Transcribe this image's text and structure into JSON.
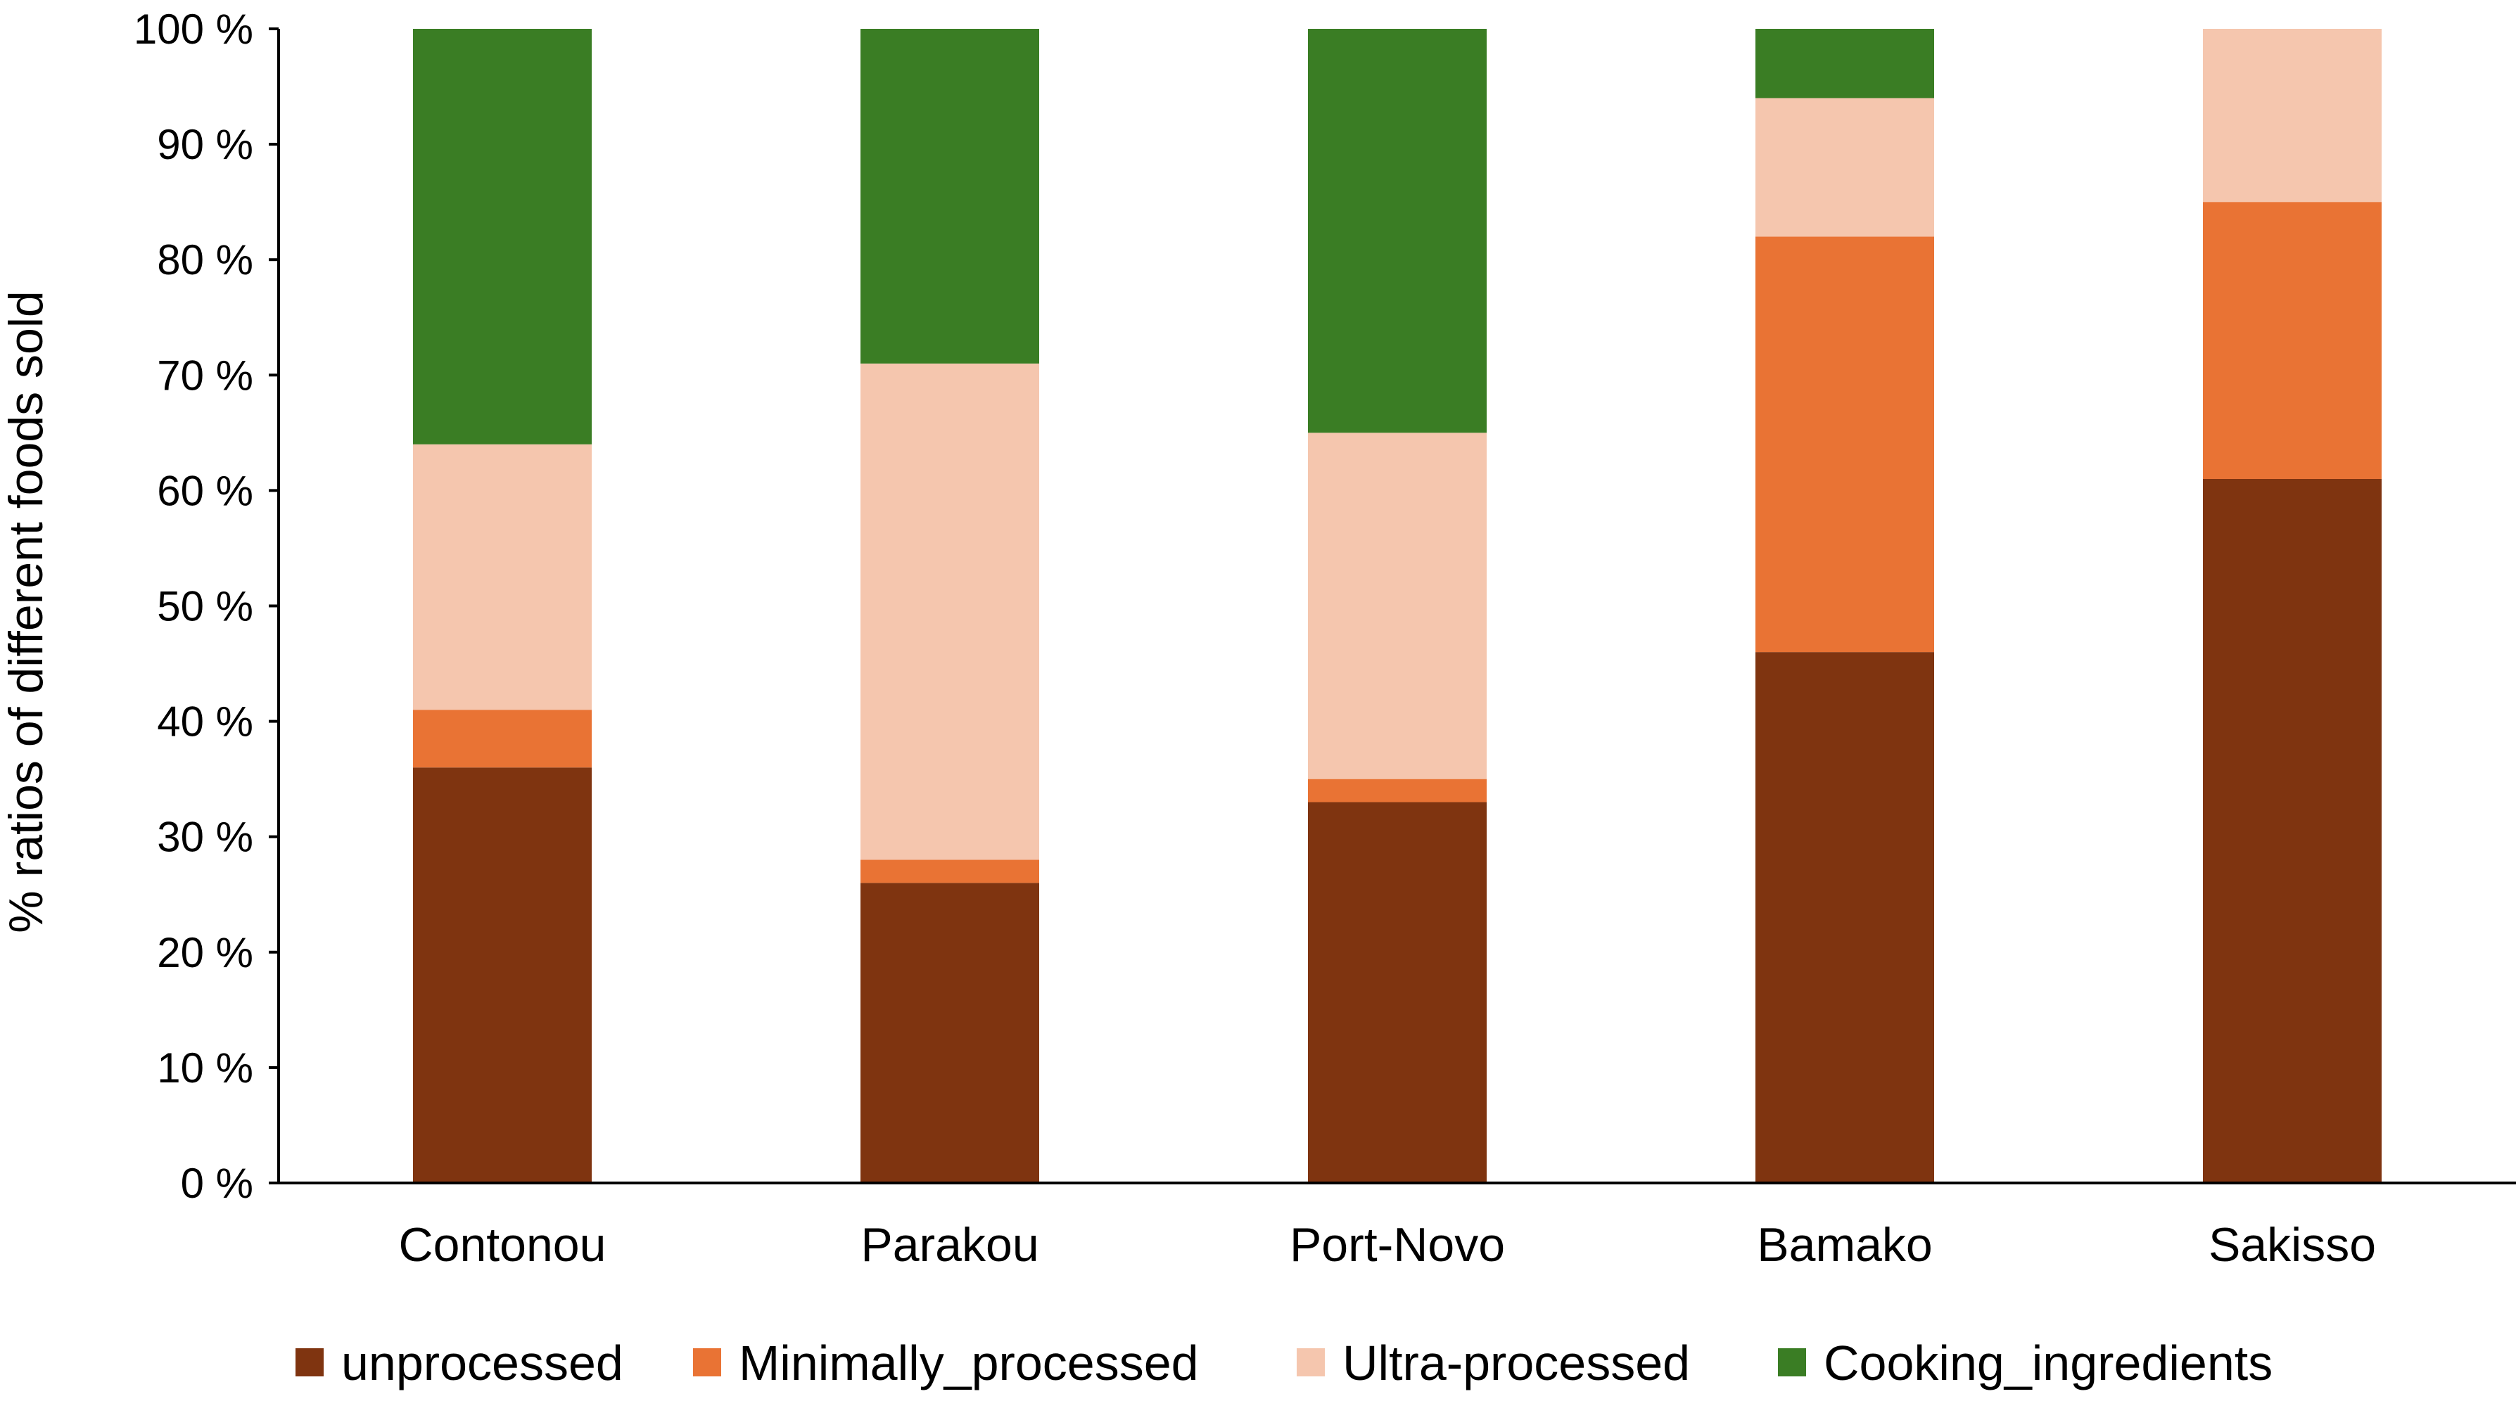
{
  "chart_data": {
    "type": "bar",
    "stacked": true,
    "title": "",
    "xlabel": "",
    "ylabel": "% ratios of different foods sold",
    "ylim": [
      0,
      100
    ],
    "yticks": [
      "0 %",
      "10 %",
      "20 %",
      "30 %",
      "40 %",
      "50 %",
      "60 %",
      "70 %",
      "80 %",
      "90 %",
      "100 %"
    ],
    "ytick_values": [
      0,
      10,
      20,
      30,
      40,
      50,
      60,
      70,
      80,
      90,
      100
    ],
    "categories": [
      "Contonou",
      "Parakou",
      "Port-Novo",
      "Bamako",
      "Sakisso"
    ],
    "series": [
      {
        "name": "unprocessed",
        "color": "#7f3410",
        "values": [
          36,
          26,
          33,
          46,
          61
        ]
      },
      {
        "name": "Minimally_processed",
        "color": "#e97334",
        "values": [
          5,
          2,
          2,
          36,
          24
        ]
      },
      {
        "name": "Ultra-processed",
        "color": "#f5c6ae",
        "values": [
          23,
          43,
          30,
          12,
          15
        ]
      },
      {
        "name": "Cooking_ingredients",
        "color": "#3a7d24",
        "values": [
          36,
          29,
          35,
          6,
          0
        ]
      }
    ],
    "grid": false,
    "legend_position": "bottom"
  }
}
